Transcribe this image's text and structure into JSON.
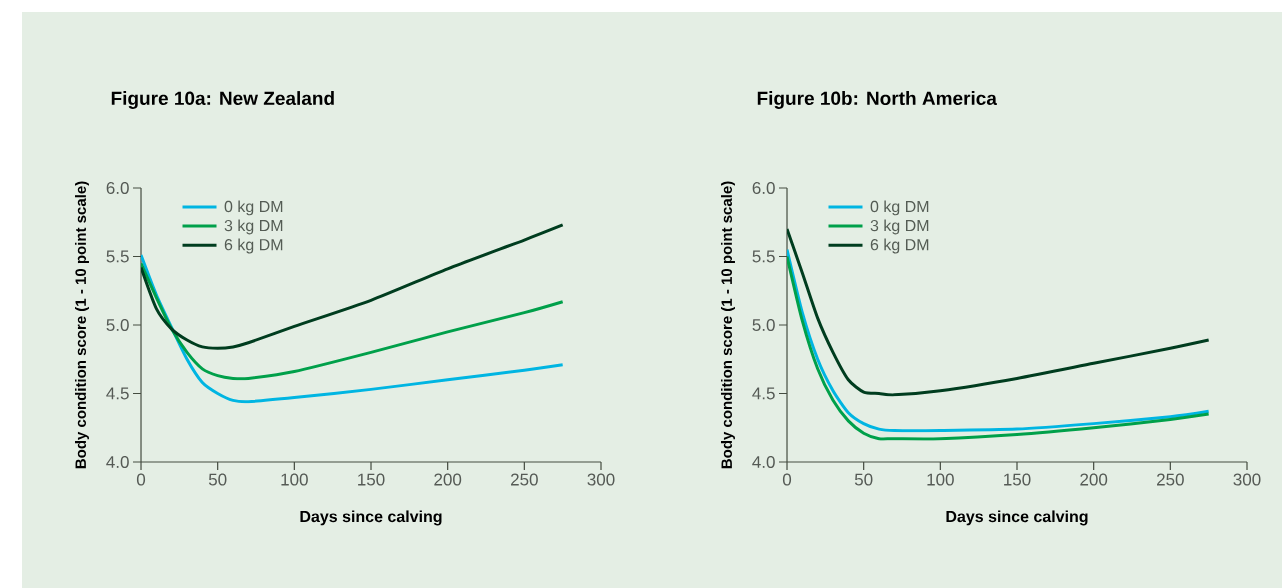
{
  "chart_data": [
    {
      "type": "line",
      "title": "Figure 10a: New Zealand",
      "xlabel": "Days since calving",
      "ylabel": "Body condition score (1 - 10 point scale)",
      "x": [
        0,
        10,
        20,
        30,
        40,
        50,
        60,
        70,
        100,
        150,
        200,
        250,
        275
      ],
      "series": [
        {
          "name": "0 kg DM",
          "color": "#00b5e2",
          "values": [
            5.51,
            5.22,
            4.98,
            4.75,
            4.58,
            4.5,
            4.45,
            4.44,
            4.47,
            4.53,
            4.6,
            4.67,
            4.71
          ]
        },
        {
          "name": "3 kg DM",
          "color": "#00a04a",
          "values": [
            5.45,
            5.2,
            4.97,
            4.8,
            4.68,
            4.63,
            4.61,
            4.61,
            4.66,
            4.8,
            4.95,
            5.09,
            5.17
          ]
        },
        {
          "name": "6 kg DM",
          "color": "#003d1f",
          "values": [
            5.42,
            5.12,
            4.97,
            4.89,
            4.84,
            4.83,
            4.84,
            4.87,
            4.99,
            5.18,
            5.41,
            5.62,
            5.73
          ]
        }
      ],
      "xlim": [
        0,
        300
      ],
      "xticks": [
        0,
        50,
        100,
        150,
        200,
        250,
        300
      ],
      "ylim": [
        4,
        6
      ],
      "yticks": [
        {
          "value": 4,
          "label": "4.0"
        },
        {
          "value": 4.5,
          "label": "4.5"
        },
        {
          "value": 5,
          "label": "5.0"
        },
        {
          "value": 5.5,
          "label": "5.5"
        },
        {
          "value": 6,
          "label": "6.0"
        }
      ],
      "legend": "top left",
      "grid": false,
      "marker": "none",
      "line_style": "solid"
    },
    {
      "type": "line",
      "title": "Figure 10b: North America",
      "xlabel": "Days since calving",
      "ylabel": "Body condition score (1 - 10 point scale)",
      "x": [
        0,
        10,
        20,
        30,
        40,
        50,
        60,
        70,
        100,
        150,
        200,
        250,
        275
      ],
      "series": [
        {
          "name": "0 kg DM",
          "color": "#00b5e2",
          "values": [
            5.55,
            5.09,
            4.75,
            4.52,
            4.36,
            4.28,
            4.24,
            4.23,
            4.23,
            4.24,
            4.28,
            4.33,
            4.37
          ]
        },
        {
          "name": "3 kg DM",
          "color": "#00a04a",
          "values": [
            5.5,
            5.03,
            4.68,
            4.45,
            4.3,
            4.21,
            4.17,
            4.17,
            4.17,
            4.2,
            4.25,
            4.31,
            4.35
          ]
        },
        {
          "name": "6 kg DM",
          "color": "#003d1f",
          "values": [
            5.7,
            5.38,
            5.05,
            4.8,
            4.6,
            4.51,
            4.5,
            4.49,
            4.52,
            4.61,
            4.72,
            4.83,
            4.89
          ]
        }
      ],
      "xlim": [
        0,
        300
      ],
      "xticks": [
        0,
        50,
        100,
        150,
        200,
        250,
        300
      ],
      "ylim": [
        4,
        6
      ],
      "yticks": [
        {
          "value": 4,
          "label": "4.0"
        },
        {
          "value": 4.5,
          "label": "4.5"
        },
        {
          "value": 5,
          "label": "5.0"
        },
        {
          "value": 5.5,
          "label": "5.5"
        },
        {
          "value": 6,
          "label": "6.0"
        }
      ],
      "legend": "top left",
      "grid": false,
      "marker": "none",
      "line_style": "solid"
    }
  ]
}
